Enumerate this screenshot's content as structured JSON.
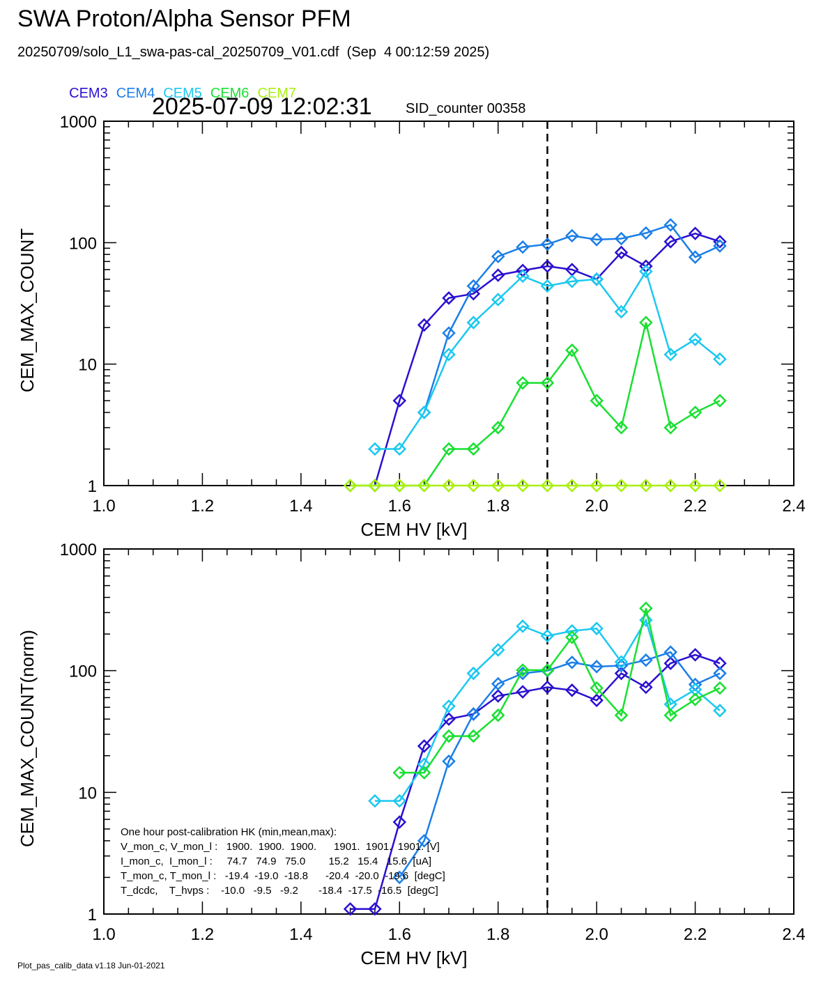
{
  "header": {
    "title": "SWA Proton/Alpha Sensor PFM",
    "subtitle": "20250709/solo_L1_swa-pas-cal_20250709_V01.cdf  (Sep  4 00:12:59 2025)",
    "timestamp": "2025-07-09 12:02:31",
    "sid_counter": "SID_counter 00358"
  },
  "legend": [
    {
      "name": "CEM3",
      "color": "#2a10d0"
    },
    {
      "name": "CEM4",
      "color": "#1a7ee8"
    },
    {
      "name": "CEM5",
      "color": "#1ac8f0"
    },
    {
      "name": "CEM6",
      "color": "#18e030"
    },
    {
      "name": "CEM7",
      "color": "#a8f010"
    }
  ],
  "footer": "Plot_pas_calib_data v1.18 Jun-01-2021",
  "hk_box": [
    "One hour post-calibration HK (min,mean,max):",
    "V_mon_c, V_mon_l :   1900.  1900.  1900.      1901.  1901.  1901. [V]",
    "I_mon_c,  I_mon_l :     74.7   74.9   75.0        15.2   15.4   15.6  [uA]",
    "T_mon_c, T_mon_l :   -19.4  -19.0  -18.8      -20.4  -20.0  -19.6  [degC]",
    "T_dcdc,    T_hvps :    -10.0   -9.5   -9.2       -18.4  -17.5  -16.5  [degC]"
  ],
  "chart_data": [
    {
      "type": "line",
      "xlabel": "CEM HV [kV]",
      "ylabel": "CEM_MAX_COUNT",
      "xlim": [
        1.0,
        2.4
      ],
      "ylim": [
        1,
        1000
      ],
      "yscale": "log",
      "x_ticks": [
        "1.0",
        "1.2",
        "1.4",
        "1.6",
        "1.8",
        "2.0",
        "2.2",
        "2.4"
      ],
      "y_ticks": [
        "1",
        "10",
        "100",
        "1000"
      ],
      "vline": 1.9,
      "x": [
        1.5,
        1.55,
        1.6,
        1.65,
        1.7,
        1.75,
        1.8,
        1.85,
        1.9,
        1.95,
        2.0,
        2.05,
        2.1,
        2.15,
        2.2,
        2.25
      ],
      "series": [
        {
          "name": "CEM3",
          "color": "#2a10d0",
          "values": [
            null,
            1,
            5,
            21,
            35,
            38,
            54,
            59,
            64,
            60,
            50,
            83,
            64,
            102,
            119,
            102
          ]
        },
        {
          "name": "CEM4",
          "color": "#1a7ee8",
          "values": [
            null,
            null,
            null,
            4,
            18,
            44,
            77,
            92,
            97,
            114,
            106,
            108,
            120,
            140,
            76,
            94
          ]
        },
        {
          "name": "CEM5",
          "color": "#1ac8f0",
          "values": [
            null,
            2,
            2,
            4,
            12,
            22,
            34,
            53,
            44,
            48,
            50,
            27,
            58,
            12,
            16,
            11
          ]
        },
        {
          "name": "CEM6",
          "color": "#18e030",
          "values": [
            1,
            1,
            1,
            1,
            2,
            2,
            3,
            7,
            7,
            13,
            5,
            3,
            22,
            3,
            4,
            5
          ]
        },
        {
          "name": "CEM7",
          "color": "#a8f010",
          "values": [
            1,
            1,
            1,
            1,
            1,
            1,
            1,
            1,
            1,
            1,
            1,
            1,
            1,
            1,
            1,
            1
          ]
        }
      ]
    },
    {
      "type": "line",
      "xlabel": "CEM HV [kV]",
      "ylabel": "CEM_MAX_COUNT(norm)",
      "xlim": [
        1.0,
        2.4
      ],
      "ylim": [
        1,
        1000
      ],
      "yscale": "log",
      "x_ticks": [
        "1.0",
        "1.2",
        "1.4",
        "1.6",
        "1.8",
        "2.0",
        "2.2",
        "2.4"
      ],
      "y_ticks": [
        "1",
        "10",
        "100",
        "1000"
      ],
      "vline": 1.9,
      "x": [
        1.5,
        1.55,
        1.6,
        1.65,
        1.7,
        1.75,
        1.8,
        1.85,
        1.9,
        1.95,
        2.0,
        2.05,
        2.1,
        2.15,
        2.2,
        2.25
      ],
      "series": [
        {
          "name": "CEM3",
          "color": "#2a10d0",
          "values": [
            1.1,
            1.1,
            5.7,
            24,
            40,
            44,
            62,
            67,
            73,
            69,
            57,
            95,
            73,
            115,
            135,
            115
          ]
        },
        {
          "name": "CEM4",
          "color": "#1a7ee8",
          "values": [
            null,
            null,
            2.0,
            4.0,
            18,
            44,
            78,
            95,
            100,
            117,
            108,
            110,
            122,
            142,
            77,
            95
          ]
        },
        {
          "name": "CEM5",
          "color": "#1ac8f0",
          "values": [
            null,
            8.5,
            8.5,
            17,
            51,
            95,
            148,
            232,
            193,
            212,
            222,
            118,
            260,
            53,
            70,
            47
          ]
        },
        {
          "name": "CEM6",
          "color": "#18e030",
          "values": [
            null,
            null,
            14.5,
            14.5,
            29,
            29,
            43,
            101,
            101,
            188,
            72,
            43,
            325,
            43,
            58,
            72
          ]
        }
      ]
    }
  ]
}
